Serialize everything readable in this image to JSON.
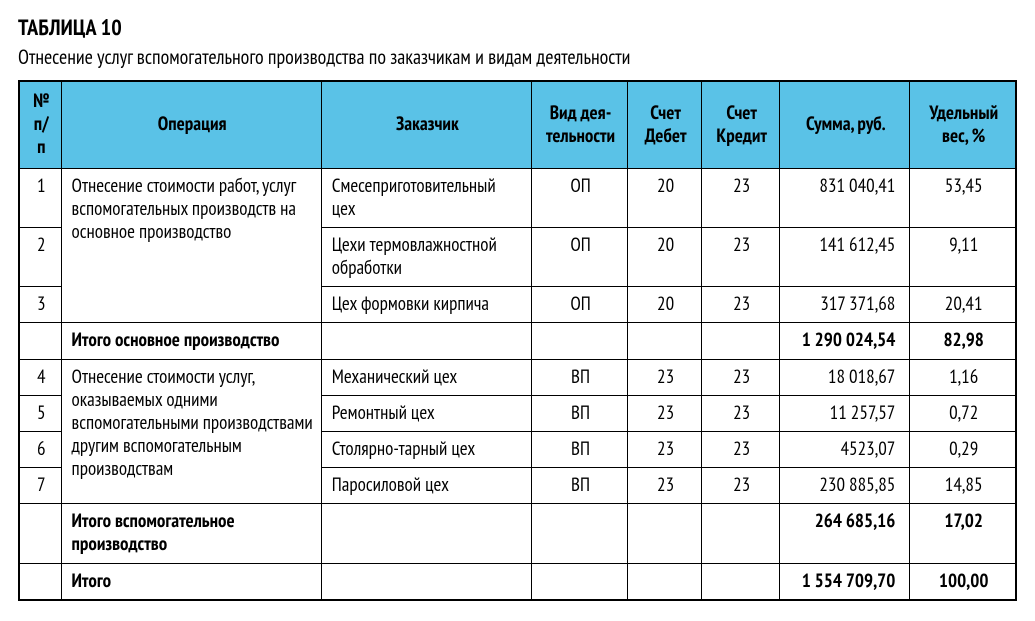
{
  "heading": {
    "title": "ТАБЛИЦА 10",
    "subtitle": "Отнесение услуг вспомогательного производства по заказчикам и видам деятельности"
  },
  "table": {
    "columns": [
      "№ п/п",
      "Операция",
      "Заказчик",
      "Вид дея­тельности",
      "Счет Дебет",
      "Счет Кредит",
      "Сумма, руб.",
      "Удельный вес, %"
    ],
    "header_background": "#5ac2e7",
    "border_color": "#000000",
    "font_family": "PT Sans Narrow",
    "groups": [
      {
        "operation": "Отнесение стоимости работ, услуг вспомогательных производств на основное производство",
        "rows": [
          {
            "num": "1",
            "customer": "Смесеприготовительный цех",
            "activity": "ОП",
            "debit": "20",
            "credit": "23",
            "sum": "831 040,41",
            "pct": "53,45"
          },
          {
            "num": "2",
            "customer": "Цехи термовлажностной обработки",
            "activity": "ОП",
            "debit": "20",
            "credit": "23",
            "sum": "141 612,45",
            "pct": "9,11"
          },
          {
            "num": "3",
            "customer": "Цех формовки кирпича",
            "activity": "ОП",
            "debit": "20",
            "credit": "23",
            "sum": "317 371,68",
            "pct": "20,41"
          }
        ],
        "subtotal": {
          "label": "Итого основное производство",
          "sum": "1 290 024,54",
          "pct": "82,98"
        }
      },
      {
        "operation": "Отнесение стоимости услуг, оказываемых одними вспомогательными производствами другим вспомогательным производствам",
        "rows": [
          {
            "num": "4",
            "customer": "Механический цех",
            "activity": "ВП",
            "debit": "23",
            "credit": "23",
            "sum": "18 018,67",
            "pct": "1,16"
          },
          {
            "num": "5",
            "customer": "Ремонтный цех",
            "activity": "ВП",
            "debit": "23",
            "credit": "23",
            "sum": "11 257,57",
            "pct": "0,72"
          },
          {
            "num": "6",
            "customer": "Столярно-тарный цех",
            "activity": "ВП",
            "debit": "23",
            "credit": "23",
            "sum": "4523,07",
            "pct": "0,29"
          },
          {
            "num": "7",
            "customer": "Паросиловой цех",
            "activity": "ВП",
            "debit": "23",
            "credit": "23",
            "sum": "230 885,85",
            "pct": "14,85"
          }
        ],
        "subtotal": {
          "label": "Итого вспомогательное производство",
          "sum": "264 685,16",
          "pct": "17,02"
        }
      }
    ],
    "grand_total": {
      "label": "Итого",
      "sum": "1 554 709,70",
      "pct": "100,00"
    }
  }
}
